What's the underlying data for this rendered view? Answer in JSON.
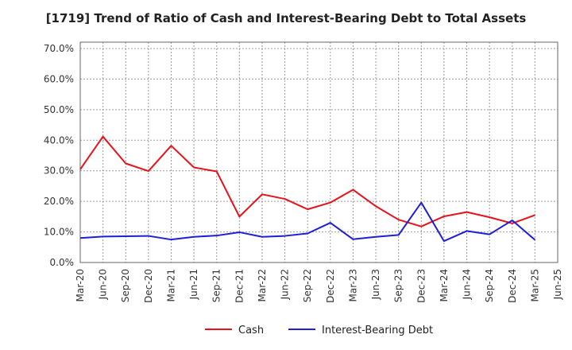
{
  "chart_data": {
    "type": "line",
    "title": "[1719]  Trend of Ratio of Cash and Interest-Bearing Debt to Total Assets",
    "xlabel": "",
    "ylabel": "",
    "ylim": [
      0,
      70
    ],
    "yticks": [
      "0.0%",
      "10.0%",
      "20.0%",
      "30.0%",
      "40.0%",
      "50.0%",
      "60.0%",
      "70.0%"
    ],
    "categories": [
      "Mar-20",
      "Jun-20",
      "Sep-20",
      "Dec-20",
      "Mar-21",
      "Jun-21",
      "Sep-21",
      "Dec-21",
      "Mar-22",
      "Jun-22",
      "Sep-22",
      "Dec-22",
      "Mar-23",
      "Jun-23",
      "Sep-23",
      "Dec-23",
      "Mar-24",
      "Jun-24",
      "Sep-24",
      "Dec-24",
      "Mar-25",
      "Jun-25"
    ],
    "series": [
      {
        "name": "Cash",
        "color": "#e8121a",
        "values": [
          30.5,
          41.2,
          32.4,
          29.9,
          38.2,
          31.1,
          29.8,
          15.0,
          22.3,
          20.8,
          17.4,
          19.6,
          23.8,
          18.4,
          14.0,
          11.8,
          15.1,
          16.5,
          14.8,
          12.8,
          15.5,
          null
        ]
      },
      {
        "name": "Interest-Bearing Debt",
        "color": "#1f1fd6",
        "values": [
          8.0,
          8.5,
          8.6,
          8.7,
          7.5,
          8.4,
          8.8,
          9.9,
          8.4,
          8.7,
          9.5,
          13.0,
          7.6,
          8.4,
          9.0,
          19.6,
          7.0,
          10.3,
          9.2,
          13.8,
          7.4,
          null
        ]
      }
    ],
    "grid": true,
    "legend_position": "bottom-center"
  }
}
